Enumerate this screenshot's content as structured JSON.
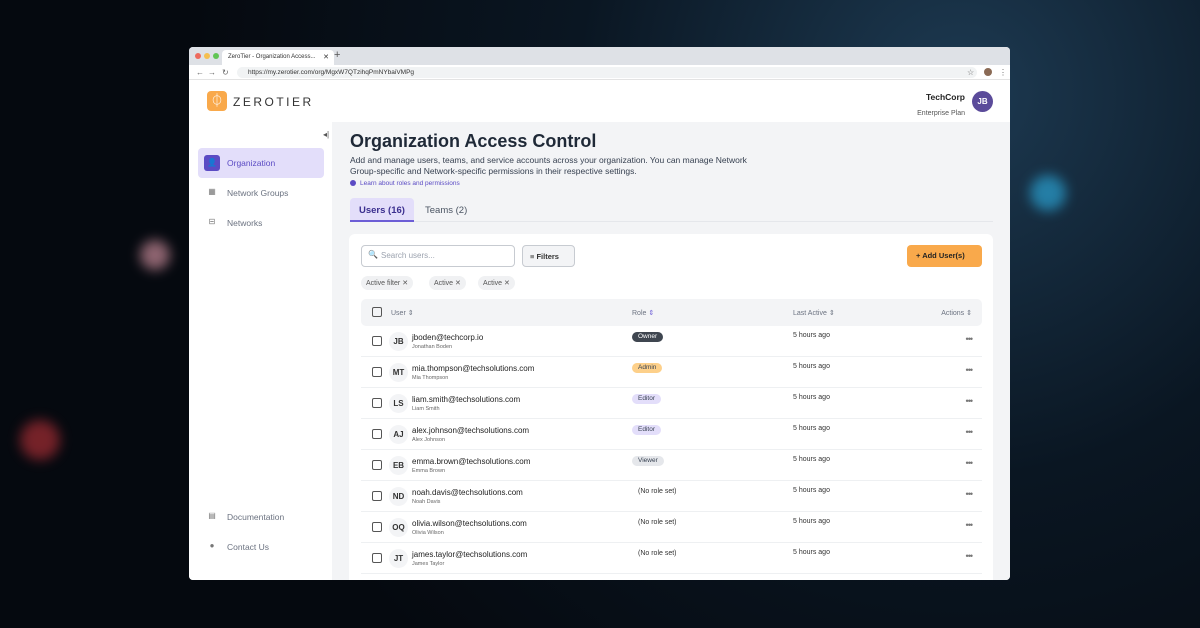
{
  "browser": {
    "tab_title": "ZeroTier - Organization Access...",
    "url": "https://my.zerotier.com/org/MgxW7QTzihqPmNYbaiVMPg"
  },
  "header": {
    "logo_text": "ZEROTIER",
    "org_name": "TechCorp",
    "plan": "Enterprise Plan",
    "avatar_initials": "JB"
  },
  "sidebar": {
    "items": [
      {
        "label": "Organization",
        "icon": "user-badge-icon",
        "active": true
      },
      {
        "label": "Network Groups",
        "icon": "building-icon"
      },
      {
        "label": "Networks",
        "icon": "network-icon"
      }
    ],
    "bottom": [
      {
        "label": "Documentation",
        "icon": "document-icon"
      },
      {
        "label": "Contact Us",
        "icon": "help-icon"
      }
    ]
  },
  "page": {
    "title": "Organization Access Control",
    "description": "Add and manage users, teams, and service accounts across your organization. You can manage Network Group-specific and Network-specific permissions in their respective settings.",
    "learn_link": "Learn about roles and permissions",
    "tabs": [
      "Users (16)",
      "Teams (2)"
    ]
  },
  "toolbar": {
    "search_placeholder": "Search users...",
    "filters_label": "Filters",
    "add_label": "Add User(s)",
    "chips": [
      "Active filter",
      "Active",
      "Active"
    ]
  },
  "table": {
    "headers": [
      "User",
      "Role",
      "Last Active",
      "Actions"
    ],
    "rows": [
      {
        "initials": "JB",
        "email": "jboden@techcorp.io",
        "name": "Jonathan Boden",
        "role": "Owner",
        "last": "5 hours ago"
      },
      {
        "initials": "MT",
        "email": "mia.thompson@techsolutions.com",
        "name": "Mia Thompson",
        "role": "Admin",
        "last": "5 hours ago"
      },
      {
        "initials": "LS",
        "email": "liam.smith@techsolutions.com",
        "name": "Liam Smith",
        "role": "Editor",
        "last": "5 hours ago"
      },
      {
        "initials": "AJ",
        "email": "alex.johnson@techsolutions.com",
        "name": "Alex Johnson",
        "role": "Editor",
        "last": "5 hours ago"
      },
      {
        "initials": "EB",
        "email": "emma.brown@techsolutions.com",
        "name": "Emma Brown",
        "role": "Viewer",
        "last": "5 hours ago"
      },
      {
        "initials": "ND",
        "email": "noah.davis@techsolutions.com",
        "name": "Noah Davis",
        "role": "(No role set)",
        "last": "5 hours ago"
      },
      {
        "initials": "OQ",
        "email": "olivia.wilson@techsolutions.com",
        "name": "Olivia Wilson",
        "role": "(No role set)",
        "last": "5 hours ago"
      },
      {
        "initials": "JT",
        "email": "james.taylor@techsolutions.com",
        "name": "James Taylor",
        "role": "(No role set)",
        "last": "5 hours ago"
      }
    ]
  },
  "colors": {
    "accent": "#5b4bc4",
    "brand": "#f9a94b",
    "Owner": "#3f4650",
    "Admin": "#fdd08a",
    "Editor": "#e3defa",
    "Viewer": "#e5e7eb"
  }
}
